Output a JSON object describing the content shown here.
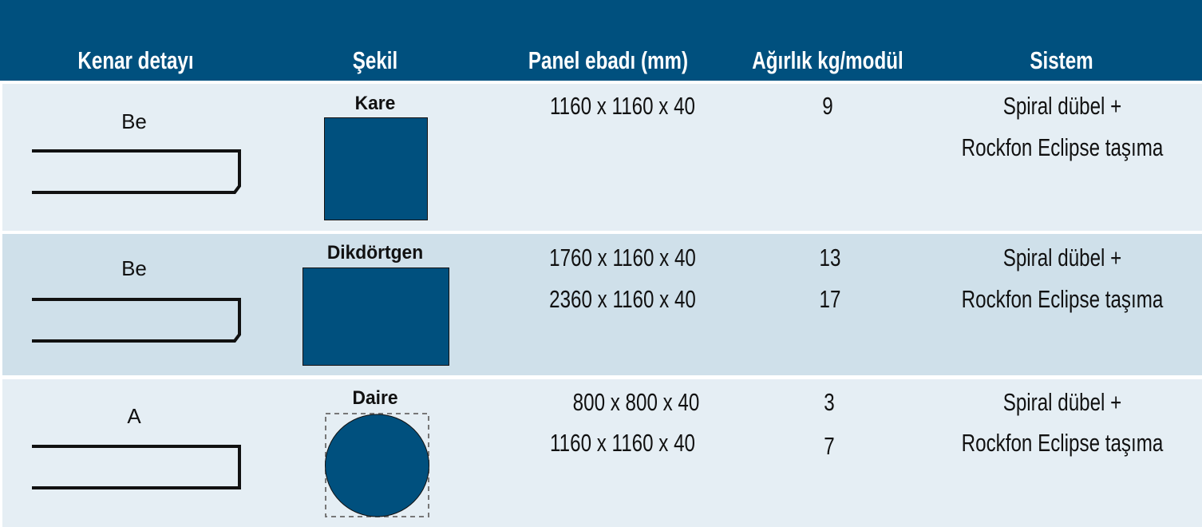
{
  "header": [
    "Kenar detayı",
    "Şekil",
    "Panel ebadı (mm)",
    "Ağırlık kg/modül",
    "Sistem"
  ],
  "colors": {
    "header_bg": "#00507e",
    "row_light": "#e5eef4",
    "row_dark": "#cfe0ea",
    "shape_fill": "#00507e"
  },
  "rows": [
    {
      "edge": "Be",
      "edge_icon": "beveled-edge-profile",
      "shape": "Kare",
      "shape_icon": "square",
      "sizes": [
        "1160 x 1160 x 40"
      ],
      "weights": [
        "9"
      ],
      "system": [
        "Spiral dübel +",
        "Rockfon Eclipse taşıma"
      ]
    },
    {
      "edge": "Be",
      "edge_icon": "beveled-edge-profile",
      "shape": "Dikdörtgen",
      "shape_icon": "rectangle",
      "sizes": [
        "1760 x 1160 x 40",
        "2360 x 1160 x 40"
      ],
      "weights": [
        "13",
        "17"
      ],
      "system": [
        "Spiral dübel +",
        "Rockfon Eclipse taşıma"
      ]
    },
    {
      "edge": "A",
      "edge_icon": "square-edge-profile",
      "shape": "Daire",
      "shape_icon": "circle",
      "sizes": [
        "800 x 800 x 40",
        "1160 x 1160 x 40"
      ],
      "weights": [
        "3",
        "7"
      ],
      "system": [
        "Spiral dübel +",
        "Rockfon Eclipse taşıma"
      ]
    }
  ]
}
